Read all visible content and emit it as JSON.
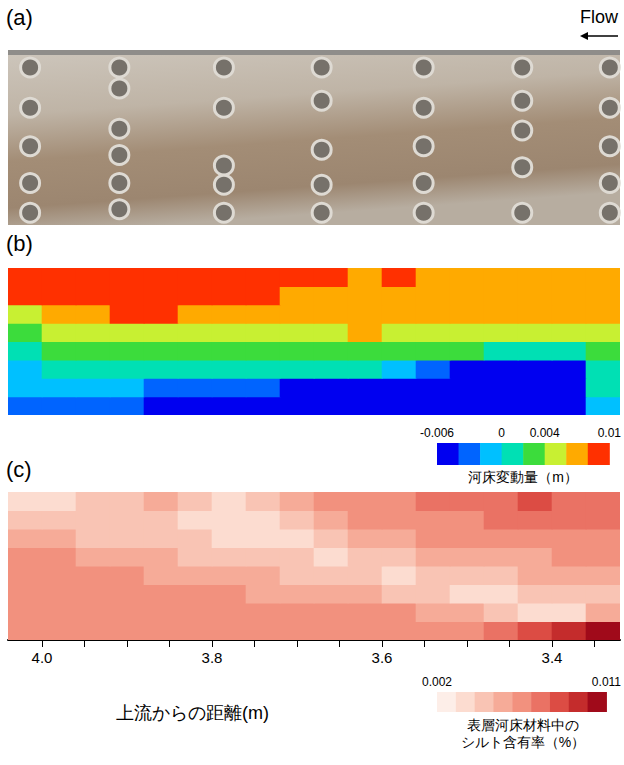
{
  "chart_data": [
    {
      "type": "scatter",
      "title": "(a)",
      "annotation": "Flow",
      "marker": "circle",
      "xlim": [
        4.04,
        3.32
      ],
      "ylim": [
        0,
        1
      ],
      "tick_labels": false,
      "x": [
        4.014,
        4.014,
        4.014,
        4.014,
        4.014,
        3.909,
        3.909,
        3.909,
        3.909,
        3.909,
        3.909,
        3.786,
        3.786,
        3.786,
        3.786,
        3.786,
        3.671,
        3.671,
        3.671,
        3.671,
        3.671,
        3.551,
        3.551,
        3.551,
        3.551,
        3.551,
        3.435,
        3.435,
        3.435,
        3.435,
        3.435,
        3.332,
        3.332,
        3.332,
        3.332,
        3.332
      ],
      "values": [
        0.9,
        0.67,
        0.45,
        0.24,
        0.07,
        0.9,
        0.78,
        0.55,
        0.4,
        0.24,
        0.09,
        0.9,
        0.67,
        0.34,
        0.23,
        0.07,
        0.9,
        0.71,
        0.43,
        0.23,
        0.07,
        0.9,
        0.67,
        0.45,
        0.24,
        0.07,
        0.9,
        0.71,
        0.54,
        0.33,
        0.07,
        0.9,
        0.67,
        0.45,
        0.24,
        0.07
      ]
    },
    {
      "type": "heatmap",
      "title": "(b)",
      "xlim": [
        4.04,
        3.32
      ],
      "ylim": [
        0,
        1
      ],
      "tick_labels": false,
      "x": [
        4.02,
        3.98,
        3.94,
        3.9,
        3.86,
        3.82,
        3.78,
        3.74,
        3.7,
        3.66,
        3.62,
        3.58,
        3.54,
        3.5,
        3.46,
        3.42,
        3.38,
        3.34
      ],
      "y": [
        0.0625,
        0.1875,
        0.3125,
        0.4375,
        0.5625,
        0.6875,
        0.8125,
        0.9375
      ],
      "values": [
        [
          -0.003,
          -0.003,
          -0.003,
          -0.003,
          -0.005,
          -0.005,
          -0.005,
          -0.005,
          -0.005,
          -0.005,
          -0.005,
          -0.005,
          -0.005,
          -0.005,
          -0.005,
          -0.005,
          -0.005,
          -0.001
        ],
        [
          -0.001,
          -0.001,
          -0.001,
          -0.001,
          -0.003,
          -0.003,
          -0.003,
          -0.003,
          -0.005,
          -0.005,
          -0.005,
          -0.005,
          -0.005,
          -0.005,
          -0.005,
          -0.005,
          -0.005,
          0.001
        ],
        [
          -0.001,
          0.001,
          0.001,
          0.001,
          0.001,
          0.001,
          0.001,
          0.001,
          0.001,
          0.001,
          0.001,
          -0.001,
          -0.003,
          -0.005,
          -0.005,
          -0.005,
          -0.005,
          0.001
        ],
        [
          0.001,
          0.003,
          0.003,
          0.003,
          0.003,
          0.003,
          0.003,
          0.003,
          0.003,
          0.003,
          0.003,
          0.003,
          0.003,
          0.003,
          0.001,
          0.001,
          0.001,
          0.003
        ],
        [
          0.003,
          0.005,
          0.005,
          0.005,
          0.005,
          0.005,
          0.005,
          0.005,
          0.005,
          0.005,
          0.007,
          0.005,
          0.005,
          0.005,
          0.005,
          0.005,
          0.005,
          0.005
        ],
        [
          0.005,
          0.007,
          0.007,
          0.009,
          0.009,
          0.007,
          0.007,
          0.007,
          0.007,
          0.007,
          0.007,
          0.007,
          0.007,
          0.007,
          0.007,
          0.007,
          0.007,
          0.007
        ],
        [
          0.009,
          0.009,
          0.009,
          0.009,
          0.009,
          0.009,
          0.009,
          0.009,
          0.007,
          0.007,
          0.007,
          0.007,
          0.007,
          0.007,
          0.007,
          0.007,
          0.007,
          0.007
        ],
        [
          0.009,
          0.009,
          0.009,
          0.009,
          0.009,
          0.009,
          0.009,
          0.009,
          0.009,
          0.009,
          0.007,
          0.009,
          0.007,
          0.007,
          0.007,
          0.007,
          0.007,
          0.007
        ]
      ],
      "colorbar": {
        "label": "河床変動量（m）",
        "range": [
          -0.006,
          0.01
        ],
        "ticks": [
          -0.006,
          0,
          0.004,
          0.01
        ],
        "levels": [
          -0.006,
          -0.004,
          -0.002,
          0,
          0.002,
          0.004,
          0.006,
          0.008,
          0.01
        ],
        "colors": [
          "#0000f0",
          "#0064ff",
          "#00c0ff",
          "#00e0b4",
          "#3cdc3c",
          "#c8f032",
          "#ffaa00",
          "#ff3000"
        ]
      }
    },
    {
      "type": "heatmap",
      "title": "(c)",
      "xlabel": "上流からの距離(m)",
      "xlim": [
        4.04,
        3.32
      ],
      "ylim": [
        0,
        1
      ],
      "tick_labels": "x",
      "xticks": [
        {
          "value": 4.0,
          "label": "4.0"
        },
        {
          "value": 3.8,
          "label": "3.8"
        },
        {
          "value": 3.6,
          "label": "3.6"
        },
        {
          "value": 3.4,
          "label": "3.4"
        }
      ],
      "minor_xticks": [
        3.95,
        3.9,
        3.85,
        3.75,
        3.7,
        3.65,
        3.55,
        3.5,
        3.45,
        3.35
      ],
      "x": [
        4.02,
        3.98,
        3.94,
        3.9,
        3.86,
        3.82,
        3.78,
        3.74,
        3.7,
        3.66,
        3.62,
        3.58,
        3.54,
        3.5,
        3.46,
        3.42,
        3.38,
        3.34
      ],
      "y": [
        0.0625,
        0.1875,
        0.3125,
        0.4375,
        0.5625,
        0.6875,
        0.8125,
        0.9375
      ],
      "values": [
        [
          0.006,
          0.006,
          0.006,
          0.006,
          0.006,
          0.006,
          0.006,
          0.006,
          0.006,
          0.006,
          0.006,
          0.006,
          0.006,
          0.006,
          0.007,
          0.008,
          0.009,
          0.011
        ],
        [
          0.006,
          0.006,
          0.006,
          0.006,
          0.006,
          0.006,
          0.006,
          0.006,
          0.006,
          0.006,
          0.006,
          0.006,
          0.005,
          0.005,
          0.004,
          0.003,
          0.003,
          0.005
        ],
        [
          0.006,
          0.006,
          0.006,
          0.006,
          0.006,
          0.006,
          0.006,
          0.005,
          0.005,
          0.005,
          0.005,
          0.004,
          0.004,
          0.003,
          0.003,
          0.004,
          0.004,
          0.004
        ],
        [
          0.006,
          0.006,
          0.006,
          0.006,
          0.005,
          0.005,
          0.005,
          0.005,
          0.004,
          0.004,
          0.004,
          0.003,
          0.004,
          0.004,
          0.004,
          0.005,
          0.005,
          0.005
        ],
        [
          0.006,
          0.006,
          0.005,
          0.005,
          0.005,
          0.004,
          0.004,
          0.004,
          0.004,
          0.003,
          0.004,
          0.004,
          0.005,
          0.005,
          0.005,
          0.005,
          0.006,
          0.006
        ],
        [
          0.005,
          0.005,
          0.004,
          0.004,
          0.004,
          0.004,
          0.003,
          0.003,
          0.003,
          0.004,
          0.005,
          0.005,
          0.006,
          0.006,
          0.006,
          0.006,
          0.006,
          0.006
        ],
        [
          0.004,
          0.004,
          0.004,
          0.004,
          0.004,
          0.003,
          0.003,
          0.003,
          0.004,
          0.005,
          0.006,
          0.006,
          0.006,
          0.006,
          0.007,
          0.007,
          0.007,
          0.007
        ],
        [
          0.003,
          0.003,
          0.004,
          0.004,
          0.005,
          0.004,
          0.003,
          0.004,
          0.005,
          0.006,
          0.006,
          0.006,
          0.007,
          0.007,
          0.007,
          0.008,
          0.007,
          0.007
        ]
      ],
      "colorbar": {
        "label": "表層河床材料中のシルト含有率（%）",
        "range": [
          0.002,
          0.011
        ],
        "ticks": [
          0.002,
          0.011
        ],
        "levels": [
          0.002,
          0.003,
          0.004,
          0.005,
          0.006,
          0.007,
          0.008,
          0.009,
          0.01,
          0.011
        ],
        "colors": [
          "#fdeee8",
          "#fcdcd0",
          "#f9c4b4",
          "#f6ab98",
          "#f2917e",
          "#ea7264",
          "#dc4c44",
          "#c42c2c",
          "#a00a1a"
        ]
      }
    }
  ]
}
